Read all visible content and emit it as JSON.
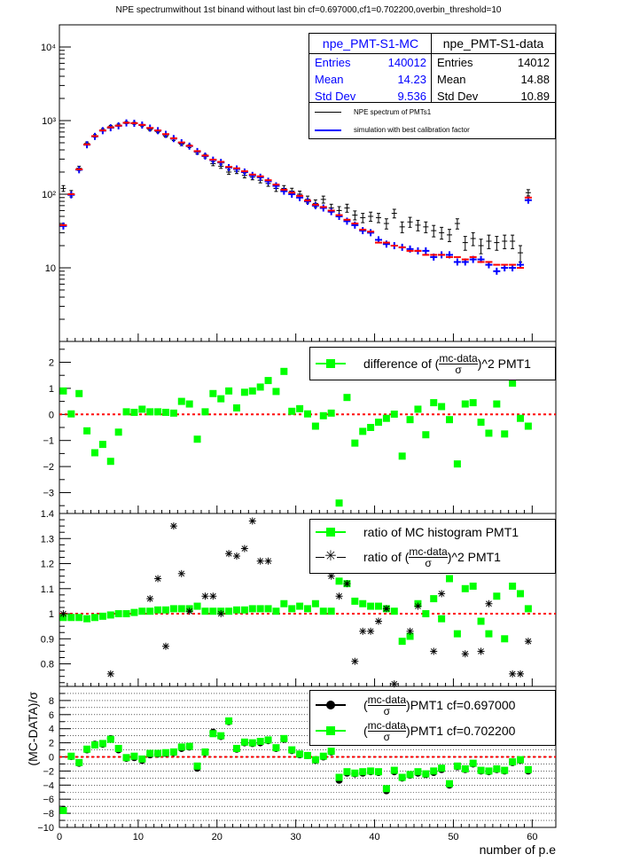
{
  "title": "NPE spectrumwithout 1st binand without last bin cf=0.697000,cf1=0.702200,overbin_threshold=10",
  "colors": {
    "data": "#000000",
    "mc": "#0000ff",
    "mc2": "#ff0000",
    "green": "#00ff00",
    "ref": "#ff0000"
  },
  "stats_mc": {
    "name": "npe_PMT-S1-MC",
    "entries_label": "Entries",
    "entries": "140012",
    "mean_label": "Mean",
    "mean": "14.23",
    "std_label": "Std Dev",
    "std": "9.536"
  },
  "stats_data": {
    "name": "npe_PMT-S1-data",
    "entries_label": "Entries",
    "entries": "14012",
    "mean_label": "Mean",
    "mean": "14.88",
    "std_label": "Std Dev",
    "std": "10.89"
  },
  "legend1": {
    "data": "NPE spectrum of PMTs1",
    "mc": "simulation with best calibration factor"
  },
  "legend2": {
    "pre": "difference of (",
    "num": "mc-data",
    "den": "σ",
    "post": ")^2 PMT1"
  },
  "legend3": {
    "ratio": "ratio of MC histogram  PMT1",
    "pre": "ratio of (",
    "num": "mc-data",
    "den": "σ",
    "post": ")^2 PMT1"
  },
  "legend4": {
    "num": "mc-data",
    "den": "σ",
    "a": " PMT1 cf=0.697000",
    "b": " PMT1 cf=0.702200"
  },
  "axes": {
    "xlabel": "number of p.e",
    "ylabel4": "(MC-DATA)/σ",
    "xticks": [
      "0",
      "10",
      "20",
      "30",
      "40",
      "50",
      "60"
    ],
    "y1ticks": [
      "10",
      "10²",
      "10³",
      "10⁴"
    ],
    "y2ticks": [
      "−3",
      "−2",
      "−1",
      "0",
      "1",
      "2"
    ],
    "y3ticks": [
      "0.8",
      "0.9",
      "1",
      "1.1",
      "1.2",
      "1.3",
      "1.4"
    ],
    "y4ticks": [
      "−10",
      "−8",
      "−6",
      "−4",
      "−2",
      "0",
      "2",
      "4",
      "6",
      "8"
    ]
  },
  "chart_data": [
    {
      "type": "scatter",
      "log_y": true,
      "xlim": [
        0,
        63
      ],
      "ylim": [
        1,
        20000
      ],
      "x": [
        0.5,
        1.5,
        2.5,
        3.5,
        4.5,
        5.5,
        6.5,
        7.5,
        8.5,
        9.5,
        10.5,
        11.5,
        12.5,
        13.5,
        14.5,
        15.5,
        16.5,
        17.5,
        18.5,
        19.5,
        20.5,
        21.5,
        22.5,
        23.5,
        24.5,
        25.5,
        26.5,
        27.5,
        28.5,
        29.5,
        30.5,
        31.5,
        32.5,
        33.5,
        34.5,
        35.5,
        36.5,
        37.5,
        38.5,
        39.5,
        40.5,
        41.5,
        42.5,
        43.5,
        44.5,
        45.5,
        46.5,
        47.5,
        48.5,
        49.5,
        50.5,
        51.5,
        52.5,
        53.5,
        54.5,
        55.5,
        56.5,
        57.5,
        58.5,
        59.5
      ],
      "series": [
        {
          "name": "NPE spectrum of PMTs1",
          "values": [
            120,
            102,
            225,
            490,
            620,
            750,
            830,
            870,
            940,
            920,
            860,
            760,
            710,
            620,
            560,
            480,
            450,
            370,
            330,
            260,
            240,
            200,
            205,
            180,
            170,
            155,
            140,
            120,
            120,
            110,
            100,
            85,
            75,
            85,
            65,
            60,
            65,
            52,
            48,
            50,
            48,
            40,
            55,
            36,
            42,
            38,
            36,
            32,
            30,
            28,
            40,
            22,
            25,
            20,
            23,
            22,
            23,
            23,
            16,
            105
          ]
        },
        {
          "name": "simulation with best calibration factor",
          "values": [
            37,
            98,
            215,
            470,
            610,
            730,
            800,
            850,
            930,
            920,
            870,
            790,
            730,
            650,
            570,
            500,
            450,
            380,
            330,
            290,
            270,
            230,
            220,
            200,
            180,
            170,
            150,
            130,
            110,
            100,
            90,
            80,
            70,
            65,
            58,
            50,
            43,
            38,
            32,
            30,
            24,
            21,
            20,
            19,
            18,
            17,
            17,
            14,
            15,
            15,
            12,
            12,
            13,
            13,
            11,
            9,
            10,
            10,
            11,
            83
          ]
        },
        {
          "name": "",
          "values": [
            38,
            100,
            218,
            475,
            615,
            735,
            810,
            855,
            935,
            925,
            875,
            795,
            735,
            655,
            575,
            505,
            455,
            385,
            335,
            295,
            275,
            235,
            225,
            205,
            185,
            175,
            155,
            135,
            115,
            105,
            95,
            82,
            72,
            67,
            60,
            52,
            45,
            40,
            33,
            31,
            22,
            22,
            20,
            19,
            17,
            17,
            15,
            15,
            15,
            14,
            14,
            13,
            14,
            12,
            12,
            11,
            11,
            11,
            10,
            90
          ]
        }
      ]
    },
    {
      "type": "scatter",
      "xlim": [
        0,
        63
      ],
      "ylim": [
        -3.8,
        2.8
      ],
      "x": [
        0.5,
        1.5,
        2.5,
        3.5,
        4.5,
        5.5,
        6.5,
        7.5,
        8.5,
        9.5,
        10.5,
        11.5,
        12.5,
        13.5,
        14.5,
        15.5,
        16.5,
        17.5,
        18.5,
        19.5,
        20.5,
        21.5,
        22.5,
        23.5,
        24.5,
        25.5,
        26.5,
        27.5,
        28.5,
        29.5,
        30.5,
        31.5,
        32.5,
        33.5,
        34.5,
        35.5,
        36.5,
        37.5,
        38.5,
        39.5,
        40.5,
        41.5,
        42.5,
        43.5,
        44.5,
        45.5,
        46.5,
        47.5,
        48.5,
        49.5,
        50.5,
        51.5,
        52.5,
        53.5,
        54.5,
        55.5,
        56.5,
        57.5,
        58.5,
        59.5
      ],
      "series": [
        {
          "name": "difference of (mc-data/σ)^2 PMT1",
          "values": [
            0.9,
            0.02,
            0.8,
            -0.63,
            -1.47,
            -1.15,
            -1.8,
            -0.68,
            0.1,
            0.08,
            0.2,
            0.1,
            0.1,
            0.08,
            0.05,
            0.5,
            0.4,
            -0.95,
            0.1,
            0.8,
            0.6,
            0.9,
            0.25,
            0.85,
            0.9,
            1.05,
            1.3,
            0.88,
            1.65,
            0.12,
            0.22,
            0.02,
            -0.45,
            -0.05,
            0.05,
            -3.4,
            0.65,
            -1.1,
            -0.65,
            -0.5,
            -0.3,
            -0.15,
            0.01,
            -1.6,
            -0.2,
            0.2,
            -0.78,
            0.45,
            0.3,
            -0.2,
            -1.9,
            0.4,
            0.45,
            -0.3,
            -0.72,
            0.4,
            -0.75,
            1.2,
            -0.15,
            -0.45
          ]
        }
      ]
    },
    {
      "type": "scatter",
      "xlim": [
        0,
        63
      ],
      "ylim": [
        0.71,
        1.4
      ],
      "x": [
        0.5,
        1.5,
        2.5,
        3.5,
        4.5,
        5.5,
        6.5,
        7.5,
        8.5,
        9.5,
        10.5,
        11.5,
        12.5,
        13.5,
        14.5,
        15.5,
        16.5,
        17.5,
        18.5,
        19.5,
        20.5,
        21.5,
        22.5,
        23.5,
        24.5,
        25.5,
        26.5,
        27.5,
        28.5,
        29.5,
        30.5,
        31.5,
        32.5,
        33.5,
        34.5,
        35.5,
        36.5,
        37.5,
        38.5,
        39.5,
        40.5,
        41.5,
        42.5,
        43.5,
        44.5,
        45.5,
        46.5,
        47.5,
        48.5,
        49.5,
        50.5,
        51.5,
        52.5,
        53.5,
        54.5,
        55.5,
        56.5,
        57.5,
        58.5,
        59.5
      ],
      "series": [
        {
          "name": "ratio of MC histogram  PMT1",
          "values": [
            0.985,
            0.985,
            0.985,
            0.98,
            0.985,
            0.99,
            0.995,
            1.0,
            1.0,
            1.005,
            1.01,
            1.01,
            1.015,
            1.015,
            1.02,
            1.02,
            1.02,
            1.03,
            1.01,
            1.01,
            1.01,
            1.01,
            1.015,
            1.015,
            1.02,
            1.02,
            1.02,
            1.01,
            1.04,
            1.02,
            1.03,
            1.02,
            1.04,
            1.01,
            1.01,
            1.13,
            1.12,
            1.05,
            1.04,
            1.03,
            1.03,
            1.02,
            1.01,
            0.89,
            0.91,
            1.04,
            1.0,
            1.06,
            0.98,
            1.14,
            0.92,
            1.1,
            1.11,
            0.97,
            0.92,
            1.07,
            0.9,
            1.11,
            1.08,
            1.02
          ]
        },
        {
          "name": "ratio of (mc-data/σ)^2 PMT1",
          "values": [
            1.0,
            null,
            null,
            null,
            null,
            null,
            0.76,
            null,
            null,
            null,
            null,
            1.06,
            1.14,
            0.87,
            1.35,
            1.16,
            1.01,
            null,
            1.07,
            1.07,
            1.0,
            1.24,
            1.23,
            1.26,
            1.37,
            1.21,
            1.21,
            null,
            null,
            null,
            null,
            null,
            null,
            null,
            1.15,
            1.07,
            1.12,
            0.81,
            0.93,
            0.93,
            0.97,
            1.02,
            0.72,
            null,
            0.93,
            1.03,
            null,
            0.85,
            1.08,
            null,
            null,
            0.84,
            null,
            0.85,
            1.04,
            null,
            null,
            0.76,
            0.76,
            0.89
          ]
        }
      ]
    },
    {
      "type": "scatter",
      "xlim": [
        0,
        63
      ],
      "ylim": [
        -10,
        10
      ],
      "x": [
        0.5,
        1.5,
        2.5,
        3.5,
        4.5,
        5.5,
        6.5,
        7.5,
        8.5,
        9.5,
        10.5,
        11.5,
        12.5,
        13.5,
        14.5,
        15.5,
        16.5,
        17.5,
        18.5,
        19.5,
        20.5,
        21.5,
        22.5,
        23.5,
        24.5,
        25.5,
        26.5,
        27.5,
        28.5,
        29.5,
        30.5,
        31.5,
        32.5,
        33.5,
        34.5,
        35.5,
        36.5,
        37.5,
        38.5,
        39.5,
        40.5,
        41.5,
        42.5,
        43.5,
        44.5,
        45.5,
        46.5,
        47.5,
        48.5,
        49.5,
        50.5,
        51.5,
        52.5,
        53.5,
        54.5,
        55.5,
        56.5,
        57.5,
        58.5,
        59.5
      ],
      "series": [
        {
          "name": "PMT1 cf=0.697000",
          "values": [
            -7.5,
            0.05,
            -0.9,
            1.0,
            1.8,
            1.8,
            2.6,
            1.0,
            -0.2,
            -0.1,
            -0.5,
            0.3,
            0.4,
            0.5,
            0.6,
            1.2,
            1.4,
            -1.6,
            0.6,
            3.5,
            2.9,
            5.0,
            1.1,
            2.0,
            1.9,
            2.0,
            2.3,
            1.2,
            2.5,
            0.9,
            0.3,
            0.2,
            -0.5,
            0.0,
            0.7,
            -3.3,
            -2.3,
            -2.4,
            -2.3,
            -2.1,
            -2.2,
            -4.8,
            -2.1,
            -3.0,
            -2.6,
            -2.3,
            -2.5,
            -2.2,
            -1.8,
            -4.0,
            -1.4,
            -1.8,
            -1.0,
            -2.0,
            -2.1,
            -1.8,
            -2.0,
            -0.8,
            -0.5,
            -2.0
          ]
        },
        {
          "name": "PMT1 cf=0.702200",
          "values": [
            -7.6,
            0.1,
            -0.8,
            1.1,
            1.7,
            1.9,
            2.5,
            1.2,
            -0.1,
            0.1,
            -0.3,
            0.5,
            0.5,
            0.6,
            0.7,
            1.4,
            1.5,
            -1.3,
            0.7,
            3.3,
            3.0,
            5.1,
            1.2,
            2.1,
            2.0,
            2.2,
            2.4,
            1.3,
            2.6,
            1.0,
            0.4,
            0.2,
            -0.4,
            0.1,
            0.8,
            -2.9,
            -2.1,
            -2.3,
            -2.1,
            -2.0,
            -2.1,
            -4.5,
            -1.9,
            -2.9,
            -2.5,
            -2.1,
            -2.4,
            -2.0,
            -1.6,
            -3.8,
            -1.3,
            -1.7,
            -0.9,
            -1.9,
            -2.0,
            -1.7,
            -1.9,
            -0.7,
            -0.4,
            -1.8
          ]
        }
      ]
    }
  ]
}
